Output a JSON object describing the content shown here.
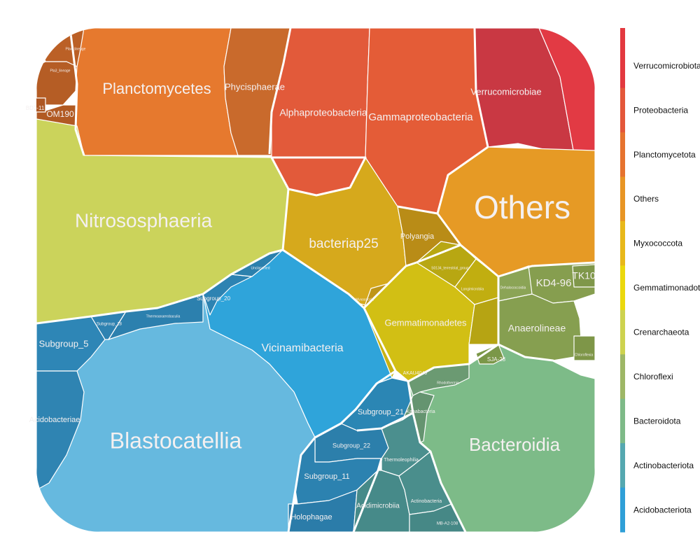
{
  "chart_data": {
    "type": "voronoi_treemap",
    "title": "",
    "legend": {
      "placement": "right",
      "items": [
        {
          "label": "Verrucomicrobiota",
          "color": "#e3393f"
        },
        {
          "label": "Proteobacteria",
          "color": "#e4573a"
        },
        {
          "label": "Planctomycetota",
          "color": "#e6732f"
        },
        {
          "label": "Others",
          "color": "#e89524"
        },
        {
          "label": "Myxococcota",
          "color": "#e8b81a"
        },
        {
          "label": "Gemmatimonadota",
          "color": "#ebd80d"
        },
        {
          "label": "Crenarchaeota",
          "color": "#cdd24f"
        },
        {
          "label": "Chloroflexi",
          "color": "#9eb766"
        },
        {
          "label": "Bacteroidota",
          "color": "#7eba88"
        },
        {
          "label": "Actinobacteriota",
          "color": "#55a8b0"
        },
        {
          "label": "Acidobacteriota",
          "color": "#2f9fd7"
        }
      ]
    },
    "cells": [
      {
        "label": "Planctomycetes",
        "color": "#e6792e"
      },
      {
        "label": "Phycisphaerae",
        "color": "#c96a2c"
      },
      {
        "label": "OM190",
        "color": "#b15a23"
      },
      {
        "label": "Pla3_lineage",
        "color": "#b55d25"
      },
      {
        "label": "Pla4_lineage",
        "color": "#bb6026"
      },
      {
        "label": "BD7-11",
        "color": "#ad5622"
      },
      {
        "label": "Alphaproteobacteria",
        "color": "#e25a3a"
      },
      {
        "label": "Gammaproteobacteria",
        "color": "#e45c37"
      },
      {
        "label": "Verrucomicrobiae",
        "color": "#c93843"
      },
      {
        "label": "",
        "color": "#e23a44"
      },
      {
        "label": "Nitrososphaeria",
        "color": "#cbd35b"
      },
      {
        "label": "Others",
        "color": "#e69a25"
      },
      {
        "label": "bacteriap25",
        "color": "#d6a91c"
      },
      {
        "label": "Polyangia",
        "color": "#b98c17"
      },
      {
        "label": "Myxococcia",
        "color": "#bf9518"
      },
      {
        "label": "Gemmatimonadetes",
        "color": "#d2bf14"
      },
      {
        "label": "S0134_terrestrial_group",
        "color": "#b8a712"
      },
      {
        "label": "Longimicrobiia",
        "color": "#c1ae10"
      },
      {
        "label": "",
        "color": "#b6a413"
      },
      {
        "label": "KD4-96",
        "color": "#869e4f"
      },
      {
        "label": "TK10",
        "color": "#7f974a"
      },
      {
        "label": "Anaerolineae",
        "color": "#869f50"
      },
      {
        "label": "Dehalococcoidia",
        "color": "#8ba456"
      },
      {
        "label": "Chloroflexia",
        "color": "#7e9648"
      },
      {
        "label": "Vicinamibacteria",
        "color": "#2fa4da"
      },
      {
        "label": "Blastocatellia",
        "color": "#66b9df"
      },
      {
        "label": "Subgroup_5",
        "color": "#2e86b6"
      },
      {
        "label": "Acidobacteriae",
        "color": "#2f84b2"
      },
      {
        "label": "Subgroup_18",
        "color": "#2e82b1"
      },
      {
        "label": "Thermoanaerobaculia",
        "color": "#2c80ae"
      },
      {
        "label": "Subgroup_20",
        "color": "#2d83b2"
      },
      {
        "label": "Unclassified",
        "color": "#2b80ad"
      },
      {
        "label": "Subgroup_21",
        "color": "#2b86b4"
      },
      {
        "label": "Subgroup_22",
        "color": "#2c7fab"
      },
      {
        "label": "Subgroup_11",
        "color": "#2c82b0"
      },
      {
        "label": "Holophagae",
        "color": "#2b7ca9"
      },
      {
        "label": "Bacteroidia",
        "color": "#7dbb88"
      },
      {
        "label": "Rhodothermia",
        "color": "#6b9a72"
      },
      {
        "label": "Kapabacteria",
        "color": "#659470"
      },
      {
        "label": "Thermoleophilia",
        "color": "#4b8f8e"
      },
      {
        "label": "Acidimicrobiia",
        "color": "#468a89"
      },
      {
        "label": "Actinobacteria",
        "color": "#4a8e8c"
      },
      {
        "label": "MB-A2-108",
        "color": "#468886"
      },
      {
        "label": "AKAU4049",
        "color": "#c8b214"
      },
      {
        "label": "SJA-28",
        "color": "#7b9748"
      }
    ]
  }
}
